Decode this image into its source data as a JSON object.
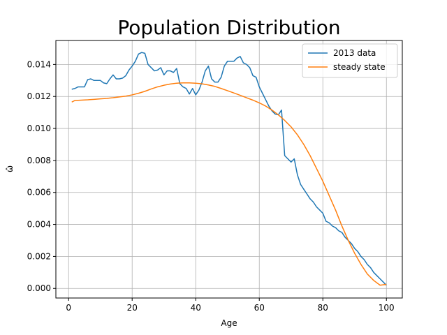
{
  "chart_data": {
    "type": "line",
    "title": "Population Distribution",
    "xlabel": "Age",
    "ylabel": "ω̂",
    "xlim": [
      -4,
      105
    ],
    "ylim": [
      -0.0006,
      0.0155
    ],
    "xticks": [
      0,
      20,
      40,
      60,
      80,
      100
    ],
    "yticks": [
      0.0,
      0.002,
      0.004,
      0.006,
      0.008,
      0.01,
      0.012,
      0.014
    ],
    "ytick_labels": [
      "0.000",
      "0.002",
      "0.004",
      "0.006",
      "0.008",
      "0.010",
      "0.012",
      "0.014"
    ],
    "grid": true,
    "legend": "top-right",
    "series": [
      {
        "name": "2013 data",
        "color": "#1f77b4",
        "x": [
          1,
          2,
          3,
          4,
          5,
          6,
          7,
          8,
          9,
          10,
          11,
          12,
          13,
          14,
          15,
          16,
          17,
          18,
          19,
          20,
          21,
          22,
          23,
          24,
          25,
          26,
          27,
          28,
          29,
          30,
          31,
          32,
          33,
          34,
          35,
          36,
          37,
          38,
          39,
          40,
          41,
          42,
          43,
          44,
          45,
          46,
          47,
          48,
          49,
          50,
          51,
          52,
          53,
          54,
          55,
          56,
          57,
          58,
          59,
          60,
          61,
          62,
          63,
          64,
          65,
          66,
          67,
          68,
          69,
          70,
          71,
          72,
          73,
          74,
          75,
          76,
          77,
          78,
          79,
          80,
          81,
          82,
          83,
          84,
          85,
          86,
          87,
          88,
          89,
          90,
          91,
          92,
          93,
          94,
          95,
          96,
          97,
          98,
          99,
          100
        ],
        "y": [
          0.01245,
          0.0125,
          0.0126,
          0.0126,
          0.0126,
          0.01305,
          0.0131,
          0.013,
          0.013,
          0.013,
          0.01285,
          0.0128,
          0.0131,
          0.01335,
          0.0131,
          0.0131,
          0.01315,
          0.0133,
          0.01365,
          0.0139,
          0.0142,
          0.01465,
          0.01475,
          0.0147,
          0.014,
          0.0138,
          0.0136,
          0.01365,
          0.0138,
          0.01335,
          0.0136,
          0.0136,
          0.0135,
          0.01375,
          0.0128,
          0.0126,
          0.0125,
          0.01215,
          0.0125,
          0.0121,
          0.0124,
          0.0129,
          0.0136,
          0.0139,
          0.0131,
          0.0129,
          0.0129,
          0.0132,
          0.0139,
          0.0142,
          0.0142,
          0.0142,
          0.0144,
          0.0145,
          0.0141,
          0.014,
          0.0138,
          0.0133,
          0.0132,
          0.0126,
          0.0122,
          0.0118,
          0.0114,
          0.0111,
          0.0109,
          0.01085,
          0.01115,
          0.0083,
          0.0081,
          0.0079,
          0.0081,
          0.0071,
          0.0065,
          0.0062,
          0.0059,
          0.0056,
          0.0054,
          0.0051,
          0.0049,
          0.0047,
          0.0042,
          0.0041,
          0.0039,
          0.0038,
          0.0036,
          0.0035,
          0.0032,
          0.003,
          0.0028,
          0.0025,
          0.0023,
          0.002,
          0.0018,
          0.0015,
          0.0013,
          0.001,
          0.0008,
          0.0006,
          0.0004,
          0.0002
        ]
      },
      {
        "name": "steady state",
        "color": "#ff7f0e",
        "x": [
          1,
          2,
          4,
          6,
          8,
          10,
          12,
          14,
          16,
          18,
          20,
          22,
          24,
          26,
          28,
          30,
          32,
          34,
          36,
          38,
          40,
          42,
          44,
          46,
          48,
          50,
          52,
          54,
          56,
          58,
          60,
          62,
          64,
          66,
          68,
          70,
          72,
          74,
          76,
          78,
          80,
          82,
          84,
          86,
          88,
          90,
          92,
          94,
          96,
          98,
          100
        ],
        "y": [
          0.01165,
          0.01175,
          0.01177,
          0.01179,
          0.01182,
          0.01185,
          0.01188,
          0.01192,
          0.01197,
          0.01202,
          0.0121,
          0.0122,
          0.01232,
          0.01247,
          0.0126,
          0.0127,
          0.01278,
          0.01283,
          0.01285,
          0.01285,
          0.01283,
          0.01279,
          0.01272,
          0.01263,
          0.0125,
          0.01236,
          0.01222,
          0.01207,
          0.01192,
          0.01177,
          0.0116,
          0.0114,
          0.01115,
          0.01085,
          0.0105,
          0.0101,
          0.0096,
          0.009,
          0.0083,
          0.0075,
          0.0067,
          0.0058,
          0.0049,
          0.0039,
          0.003,
          0.0022,
          0.0015,
          0.0009,
          0.0005,
          0.0002,
          0.00025
        ]
      }
    ]
  }
}
